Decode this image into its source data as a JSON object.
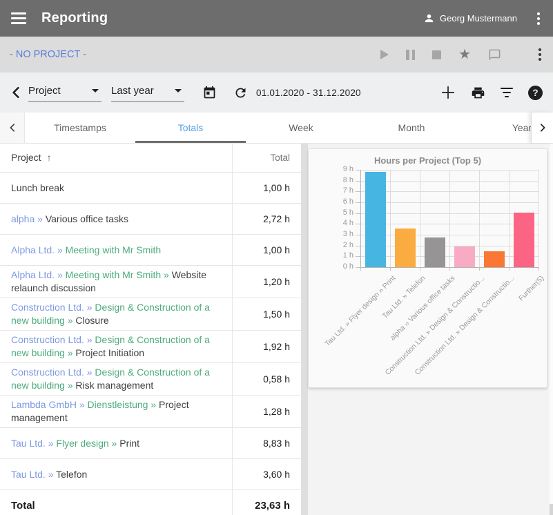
{
  "header": {
    "title": "Reporting",
    "user": "Georg Mustermann"
  },
  "project_bar": {
    "label": "- NO PROJECT -"
  },
  "toolbar": {
    "report_type": "Project",
    "period": "Last year",
    "date_range": "01.01.2020 - 31.12.2020"
  },
  "tabs": {
    "items": [
      "Timestamps",
      "Totals",
      "Week",
      "Month",
      "Year"
    ],
    "active": "Totals"
  },
  "icons": {
    "separator": "»",
    "sort_asc": "↑",
    "star": "★",
    "help": "?"
  },
  "colors": {
    "link_blue": "#7e99e2",
    "project_green": "#4cab7d",
    "tab_active": "#56a0e8",
    "no_project_blue": "#5b7ad8"
  },
  "table": {
    "columns": {
      "project": "Project",
      "total": "Total"
    },
    "rows": [
      {
        "segments": [
          {
            "text": "Lunch break",
            "type": "task"
          }
        ],
        "total": "1,00 h"
      },
      {
        "segments": [
          {
            "text": "alpha",
            "type": "customer"
          },
          {
            "text": "Various office tasks",
            "type": "task"
          }
        ],
        "total": "2,72 h"
      },
      {
        "segments": [
          {
            "text": "Alpha Ltd.",
            "type": "customer"
          },
          {
            "text": "Meeting with Mr Smith",
            "type": "project"
          }
        ],
        "total": "1,00 h"
      },
      {
        "segments": [
          {
            "text": "Alpha Ltd.",
            "type": "customer"
          },
          {
            "text": "Meeting with Mr Smith",
            "type": "project"
          },
          {
            "text": "Website relaunch discussion",
            "type": "task"
          }
        ],
        "total": "1,20 h"
      },
      {
        "segments": [
          {
            "text": "Construction Ltd.",
            "type": "customer"
          },
          {
            "text": "Design & Construction of a new building",
            "type": "project"
          },
          {
            "text": "Closure",
            "type": "task"
          }
        ],
        "total": "1,50 h"
      },
      {
        "segments": [
          {
            "text": "Construction Ltd.",
            "type": "customer"
          },
          {
            "text": "Design & Construction of a new building",
            "type": "project"
          },
          {
            "text": "Project Initiation",
            "type": "task"
          }
        ],
        "total": "1,92 h"
      },
      {
        "segments": [
          {
            "text": "Construction Ltd.",
            "type": "customer"
          },
          {
            "text": "Design & Construction of a new building",
            "type": "project"
          },
          {
            "text": "Risk management",
            "type": "task"
          }
        ],
        "total": "0,58 h"
      },
      {
        "segments": [
          {
            "text": "Lambda GmbH",
            "type": "customer"
          },
          {
            "text": "Dienstleistung",
            "type": "project"
          },
          {
            "text": "Project management",
            "type": "task"
          }
        ],
        "total": "1,28 h"
      },
      {
        "segments": [
          {
            "text": "Tau Ltd.",
            "type": "customer"
          },
          {
            "text": "Flyer design",
            "type": "project"
          },
          {
            "text": "Print",
            "type": "task"
          }
        ],
        "total": "8,83 h"
      },
      {
        "segments": [
          {
            "text": "Tau Ltd.",
            "type": "customer"
          },
          {
            "text": "Telefon",
            "type": "task"
          }
        ],
        "total": "3,60 h"
      }
    ],
    "footer": {
      "label": "Total",
      "total": "23,63 h"
    }
  },
  "chart_data": {
    "type": "bar",
    "title": "Hours per Project (Top 5)",
    "categories": [
      "Tau Ltd. » Flyer design » Print",
      "Tau Ltd. » Telefon",
      "alpha » Various office tasks",
      "Construction Ltd. » Design & Constructio...",
      "Construction Ltd. » Design & Constructio...",
      "Further(5)"
    ],
    "values": [
      8.83,
      3.6,
      2.72,
      1.92,
      1.5,
      5.06
    ],
    "bar_colors": [
      "#47b5e2",
      "#fbac40",
      "#969494",
      "#f9abc3",
      "#fb7734",
      "#fb6583"
    ],
    "ylim": [
      0,
      9
    ],
    "ytick_step": 1,
    "ytick_suffix": " h",
    "grid": true,
    "legend": "none",
    "xlabel": "",
    "ylabel": ""
  }
}
